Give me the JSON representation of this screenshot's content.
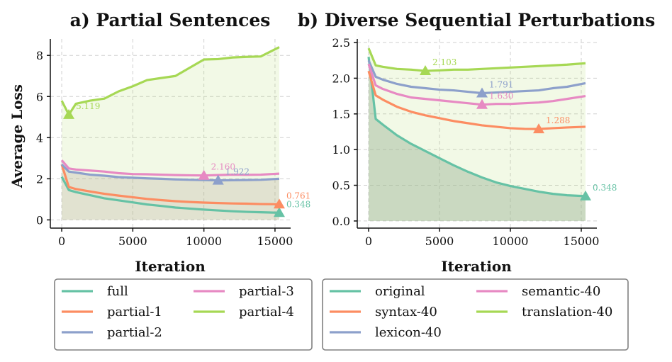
{
  "chart_data": [
    {
      "type": "line",
      "title": "a) Partial Sentences",
      "xlabel": "Iteration",
      "ylabel": "Average Loss",
      "xlim": [
        -800,
        16100
      ],
      "ylim": [
        -0.4,
        8.8
      ],
      "xticks": [
        0,
        5000,
        10000,
        15000
      ],
      "yticks": [
        0,
        2,
        4,
        6,
        8
      ],
      "grid": true,
      "legend": "below",
      "legend_columns": 2,
      "series": [
        {
          "name": "full",
          "color": "#66c2a5",
          "fill": false,
          "x": [
            0,
            500,
            1000,
            2000,
            3000,
            4000,
            5000,
            6000,
            7000,
            8000,
            9000,
            10000,
            11000,
            12000,
            13000,
            14000,
            15300
          ],
          "y": [
            2.1,
            1.45,
            1.35,
            1.2,
            1.05,
            0.95,
            0.85,
            0.75,
            0.68,
            0.6,
            0.55,
            0.5,
            0.46,
            0.42,
            0.39,
            0.37,
            0.348
          ],
          "marker": {
            "x": 15300,
            "y": 0.348,
            "label": "0.348"
          }
        },
        {
          "name": "partial-1",
          "color": "#fc8d62",
          "fill": false,
          "x": [
            0,
            500,
            1000,
            2000,
            3000,
            4000,
            5000,
            6000,
            7000,
            8000,
            9000,
            10000,
            11000,
            12000,
            13000,
            14000,
            15300
          ],
          "y": [
            2.7,
            1.6,
            1.5,
            1.38,
            1.27,
            1.18,
            1.1,
            1.02,
            0.96,
            0.91,
            0.87,
            0.84,
            0.82,
            0.8,
            0.79,
            0.77,
            0.761
          ],
          "marker": {
            "x": 15300,
            "y": 0.761,
            "label": "0.761"
          }
        },
        {
          "name": "partial-2",
          "color": "#8da0cb",
          "fill": false,
          "x": [
            0,
            500,
            1000,
            2000,
            3000,
            4000,
            5000,
            6000,
            7000,
            8000,
            9000,
            10000,
            11000,
            12000,
            13000,
            14000,
            15300
          ],
          "y": [
            2.7,
            2.35,
            2.3,
            2.2,
            2.15,
            2.08,
            2.05,
            2.02,
            2.0,
            1.97,
            1.95,
            1.94,
            1.922,
            1.93,
            1.94,
            1.95,
            2.0
          ],
          "marker": {
            "x": 11000,
            "y": 1.922,
            "label": "1.922"
          }
        },
        {
          "name": "partial-3",
          "color": "#e78ac3",
          "fill": false,
          "x": [
            0,
            500,
            1000,
            2000,
            3000,
            4000,
            5000,
            6000,
            7000,
            8000,
            9000,
            10000,
            11000,
            12000,
            13000,
            14000,
            15300
          ],
          "y": [
            2.9,
            2.5,
            2.45,
            2.4,
            2.35,
            2.27,
            2.23,
            2.22,
            2.2,
            2.18,
            2.17,
            2.16,
            2.18,
            2.2,
            2.19,
            2.2,
            2.25
          ],
          "marker": {
            "x": 10000,
            "y": 2.16,
            "label": "2.160"
          }
        },
        {
          "name": "partial-4",
          "color": "#a6d854",
          "fill": true,
          "x": [
            0,
            500,
            1000,
            2000,
            3000,
            4000,
            5000,
            6000,
            7000,
            8000,
            9000,
            10000,
            11000,
            12000,
            13000,
            14000,
            15300
          ],
          "y": [
            5.8,
            5.119,
            5.65,
            5.8,
            5.9,
            6.25,
            6.5,
            6.8,
            6.9,
            7.0,
            7.4,
            7.8,
            7.82,
            7.9,
            7.93,
            7.95,
            8.4
          ],
          "marker": {
            "x": 500,
            "y": 5.119,
            "label": "5.119"
          }
        }
      ]
    },
    {
      "type": "line",
      "title": "b) Diverse Sequential Perturbations",
      "xlabel": "Iteration",
      "ylabel": "",
      "xlim": [
        -800,
        16100
      ],
      "ylim": [
        -0.1,
        2.55
      ],
      "xticks": [
        0,
        5000,
        10000,
        15000
      ],
      "yticks": [
        0.0,
        0.5,
        1.0,
        1.5,
        2.0,
        2.5
      ],
      "grid": true,
      "legend": "below",
      "legend_columns": 2,
      "series": [
        {
          "name": "original",
          "color": "#66c2a5",
          "fill": true,
          "x": [
            0,
            500,
            1000,
            2000,
            3000,
            4000,
            5000,
            6000,
            7000,
            8000,
            9000,
            10000,
            11000,
            12000,
            13000,
            14000,
            15300
          ],
          "y": [
            2.3,
            1.43,
            1.35,
            1.2,
            1.08,
            0.98,
            0.88,
            0.78,
            0.69,
            0.61,
            0.54,
            0.49,
            0.45,
            0.41,
            0.38,
            0.36,
            0.348
          ],
          "marker": {
            "x": 15300,
            "y": 0.348,
            "label": "0.348"
          }
        },
        {
          "name": "syntax-40",
          "color": "#fc8d62",
          "fill": false,
          "x": [
            0,
            500,
            1000,
            2000,
            3000,
            4000,
            5000,
            6000,
            7000,
            8000,
            9000,
            10000,
            11000,
            12000,
            13000,
            14000,
            15300
          ],
          "y": [
            2.1,
            1.76,
            1.7,
            1.6,
            1.53,
            1.48,
            1.44,
            1.4,
            1.37,
            1.34,
            1.32,
            1.3,
            1.29,
            1.288,
            1.3,
            1.31,
            1.32
          ],
          "marker": {
            "x": 12000,
            "y": 1.288,
            "label": "1.288"
          }
        },
        {
          "name": "lexicon-40",
          "color": "#8da0cb",
          "fill": false,
          "x": [
            0,
            500,
            1000,
            2000,
            3000,
            4000,
            5000,
            6000,
            7000,
            8000,
            9000,
            10000,
            11000,
            12000,
            13000,
            14000,
            15300
          ],
          "y": [
            2.25,
            2.02,
            1.98,
            1.92,
            1.88,
            1.86,
            1.84,
            1.83,
            1.81,
            1.791,
            1.8,
            1.81,
            1.82,
            1.83,
            1.86,
            1.88,
            1.93
          ],
          "marker": {
            "x": 8000,
            "y": 1.791,
            "label": "1.791"
          }
        },
        {
          "name": "semantic-40",
          "color": "#e78ac3",
          "fill": false,
          "x": [
            0,
            500,
            1000,
            2000,
            3000,
            4000,
            5000,
            6000,
            7000,
            8000,
            9000,
            10000,
            11000,
            12000,
            13000,
            14000,
            15300
          ],
          "y": [
            2.2,
            1.9,
            1.85,
            1.78,
            1.73,
            1.71,
            1.69,
            1.67,
            1.65,
            1.63,
            1.64,
            1.64,
            1.65,
            1.66,
            1.68,
            1.71,
            1.75
          ],
          "marker": {
            "x": 8000,
            "y": 1.63,
            "label": "1.630"
          }
        },
        {
          "name": "translation-40",
          "color": "#a6d854",
          "fill": true,
          "x": [
            0,
            500,
            1000,
            2000,
            3000,
            4000,
            5000,
            6000,
            7000,
            8000,
            9000,
            10000,
            11000,
            12000,
            13000,
            14000,
            15300
          ],
          "y": [
            2.42,
            2.18,
            2.16,
            2.13,
            2.12,
            2.103,
            2.11,
            2.12,
            2.12,
            2.13,
            2.14,
            2.15,
            2.16,
            2.17,
            2.18,
            2.19,
            2.21
          ],
          "marker": {
            "x": 4000,
            "y": 2.103,
            "label": "2.103"
          }
        }
      ]
    }
  ]
}
